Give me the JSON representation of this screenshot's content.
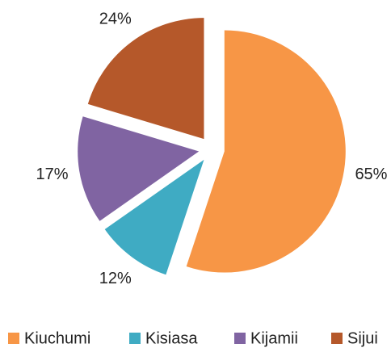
{
  "chart_data": {
    "type": "pie",
    "categories": [
      "Kiuchumi",
      "Kisiasa",
      "Kijamii",
      "Sijui"
    ],
    "values": [
      65,
      12,
      17,
      24
    ],
    "value_labels": [
      "65%",
      "12%",
      "17%",
      "24%"
    ],
    "colors": [
      "#f79646",
      "#3fabc3",
      "#8064a2",
      "#b5582a"
    ],
    "exploded": true,
    "legend": "bottom"
  }
}
